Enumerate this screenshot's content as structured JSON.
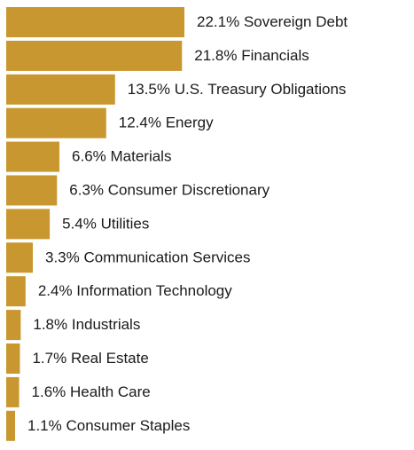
{
  "chart_data": {
    "type": "bar",
    "orientation": "horizontal",
    "color": "#c9972f",
    "categories": [
      "Sovereign Debt",
      "Financials",
      "U.S. Treasury Obligations",
      "Energy",
      "Materials",
      "Consumer Discretionary",
      "Utilities",
      "Communication Services",
      "Information Technology",
      "Industrials",
      "Real Estate",
      "Health Care",
      "Consumer Staples"
    ],
    "values": [
      22.1,
      21.8,
      13.5,
      12.4,
      6.6,
      6.3,
      5.4,
      3.3,
      2.4,
      1.8,
      1.7,
      1.6,
      1.1
    ],
    "value_labels": [
      "22.1%",
      "21.8%",
      "13.5%",
      "12.4%",
      "6.6%",
      "6.3%",
      "5.4%",
      "3.3%",
      "2.4%",
      "1.8%",
      "1.7%",
      "1.6%",
      "1.1%"
    ]
  }
}
